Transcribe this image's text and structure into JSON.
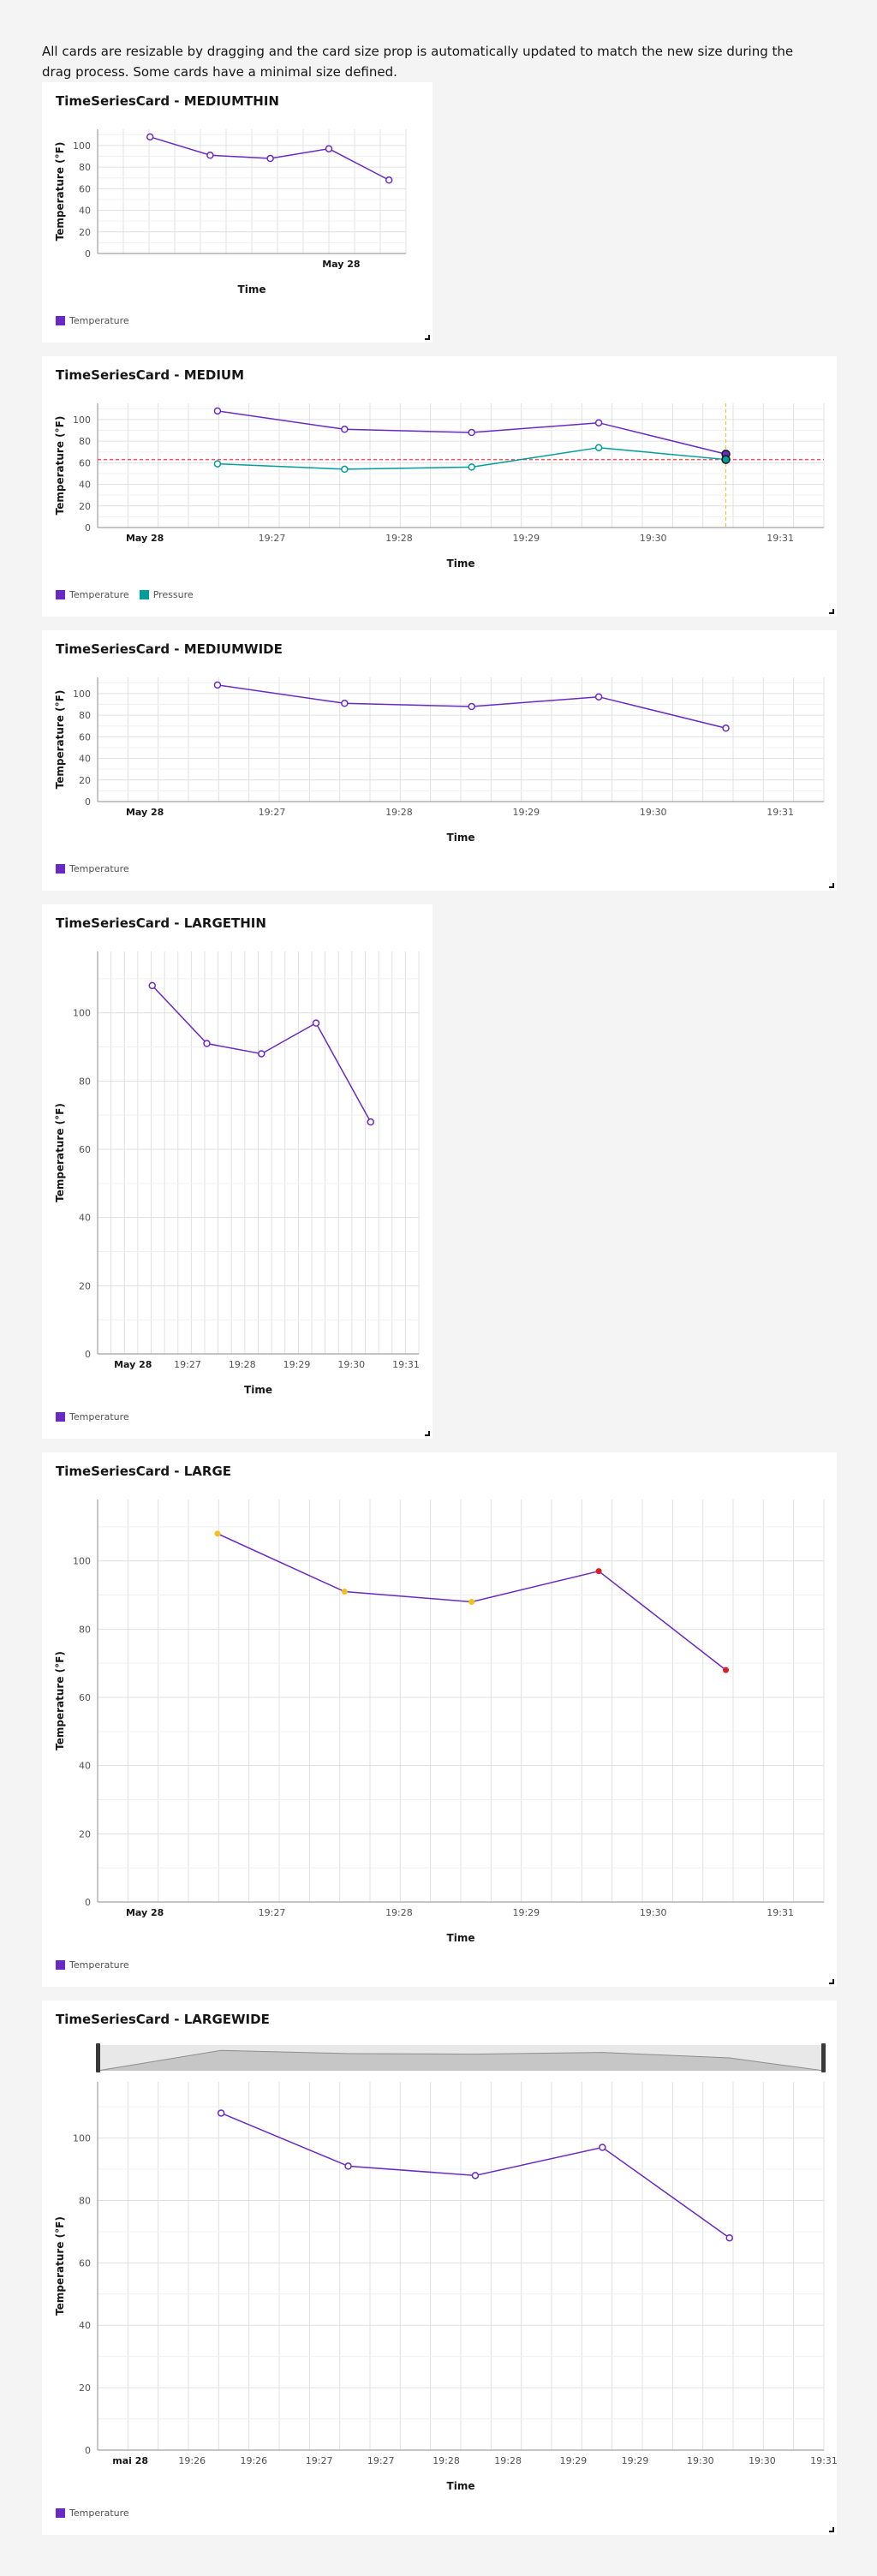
{
  "intro": "All cards are resizable by dragging and the card size prop is automatically updated to match the new size during the drag process. Some cards have a minimal size defined.",
  "colors": {
    "temperature": "#6929c4",
    "pressure": "#1192e8",
    "pressure_line": "#009d9a",
    "threshold": "#fa4d56",
    "alert_yellow": "#f1c21b",
    "alert_red": "#da1e28",
    "selection": "#f1c21b"
  },
  "cards": [
    {
      "title": "TimeSeriesCard - MEDIUMTHIN",
      "legend": [
        "Temperature"
      ]
    },
    {
      "title": "TimeSeriesCard - MEDIUM",
      "legend": [
        "Temperature",
        "Pressure"
      ]
    },
    {
      "title": "TimeSeriesCard - MEDIUMWIDE",
      "legend": [
        "Temperature"
      ]
    },
    {
      "title": "TimeSeriesCard - LARGETHIN",
      "legend": [
        "Temperature"
      ]
    },
    {
      "title": "TimeSeriesCard - LARGE",
      "legend": [
        "Temperature"
      ]
    },
    {
      "title": "TimeSeriesCard - LARGEWIDE",
      "legend": [
        "Temperature"
      ]
    }
  ],
  "chart_data": [
    {
      "type": "line",
      "title": "TimeSeriesCard - MEDIUMTHIN",
      "xlabel": "Time",
      "ylabel": "Temperature (°F)",
      "x_ticks": [
        "May 28"
      ],
      "y_ticks": [
        0,
        20,
        40,
        60,
        80,
        100
      ],
      "ylim": [
        0,
        115
      ],
      "series": [
        {
          "name": "Temperature",
          "values": [
            108,
            91,
            88,
            97,
            68
          ]
        }
      ]
    },
    {
      "type": "line",
      "title": "TimeSeriesCard - MEDIUM",
      "xlabel": "Time",
      "ylabel": "Temperature (°F)",
      "x_ticks": [
        "May 28",
        "19:27",
        "19:28",
        "19:29",
        "19:30",
        "19:31"
      ],
      "y_ticks": [
        0,
        20,
        40,
        60,
        80,
        100
      ],
      "ylim": [
        0,
        115
      ],
      "series": [
        {
          "name": "Temperature",
          "values": [
            108,
            91,
            88,
            97,
            68
          ]
        },
        {
          "name": "Pressure",
          "values": [
            59,
            54,
            56,
            74,
            63
          ]
        }
      ],
      "threshold": 63
    },
    {
      "type": "line",
      "title": "TimeSeriesCard - MEDIUMWIDE",
      "xlabel": "Time",
      "ylabel": "Temperature (°F)",
      "x_ticks": [
        "May 28",
        "19:27",
        "19:28",
        "19:29",
        "19:30",
        "19:31"
      ],
      "y_ticks": [
        0,
        20,
        40,
        60,
        80,
        100
      ],
      "ylim": [
        0,
        115
      ],
      "series": [
        {
          "name": "Temperature",
          "values": [
            108,
            91,
            88,
            97,
            68
          ]
        }
      ]
    },
    {
      "type": "line",
      "title": "TimeSeriesCard - LARGETHIN",
      "xlabel": "Time",
      "ylabel": "Temperature (°F)",
      "x_ticks": [
        "May 28",
        "19:27",
        "19:28",
        "19:29",
        "19:30",
        "19:31"
      ],
      "y_ticks": [
        0,
        20,
        40,
        60,
        80,
        100
      ],
      "ylim": [
        0,
        118
      ],
      "series": [
        {
          "name": "Temperature",
          "values": [
            108,
            91,
            88,
            97,
            68
          ]
        }
      ]
    },
    {
      "type": "line",
      "title": "TimeSeriesCard - LARGE",
      "xlabel": "Time",
      "ylabel": "Temperature (°F)",
      "x_ticks": [
        "May 28",
        "19:27",
        "19:28",
        "19:29",
        "19:30",
        "19:31"
      ],
      "y_ticks": [
        0,
        20,
        40,
        60,
        80,
        100
      ],
      "ylim": [
        0,
        118
      ],
      "series": [
        {
          "name": "Temperature",
          "values": [
            108,
            91,
            88,
            97,
            68
          ],
          "point_colors": [
            "#f1c21b",
            "#f1c21b",
            "#f1c21b",
            "#da1e28",
            "#da1e28"
          ]
        }
      ]
    },
    {
      "type": "line",
      "title": "TimeSeriesCard - LARGEWIDE",
      "xlabel": "Time",
      "ylabel": "Temperature (°F)",
      "x_ticks": [
        "mai 28",
        "19:26",
        "19:26",
        "19:27",
        "19:27",
        "19:28",
        "19:28",
        "19:29",
        "19:29",
        "19:30",
        "19:30",
        "19:31"
      ],
      "y_ticks": [
        0,
        20,
        40,
        60,
        80,
        100
      ],
      "ylim": [
        0,
        118
      ],
      "series": [
        {
          "name": "Temperature",
          "values": [
            108,
            91,
            88,
            97,
            68
          ]
        }
      ],
      "zoom_bar": true
    }
  ]
}
